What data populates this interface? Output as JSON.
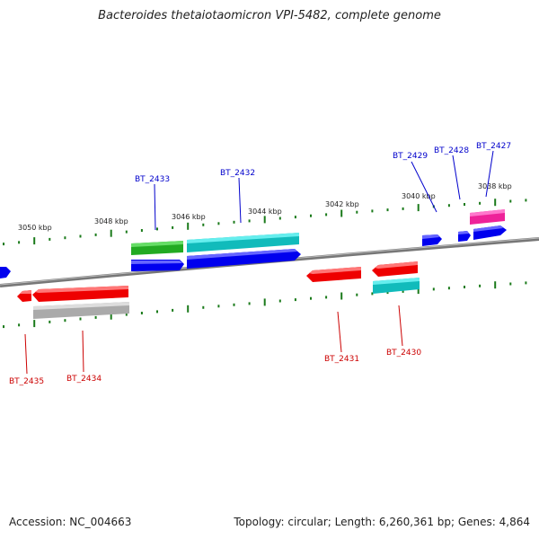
{
  "title": "Bacteroides thetaiotaomicron VPI-5482, complete genome",
  "footer": {
    "accession": "Accession: NC_004663",
    "summary": "Topology: circular; Length: 6,260,361 bp; Genes: 4,864"
  },
  "scale_labels": [
    "3050 kbp",
    "3048 kbp",
    "3046 kbp",
    "3044 kbp",
    "3042 kbp",
    "3040 kbp",
    "3038 kbp"
  ],
  "genes": {
    "upper": [
      {
        "label": "BT_2433",
        "color": "#0000cc"
      },
      {
        "label": "BT_2432",
        "color": "#0000cc"
      },
      {
        "label": "BT_2429",
        "color": "#0000cc"
      },
      {
        "label": "BT_2428",
        "color": "#0000cc"
      },
      {
        "label": "BT_2427",
        "color": "#0000cc"
      }
    ],
    "lower": [
      {
        "label": "BT_2435",
        "color": "#cc0000"
      },
      {
        "label": "BT_2434",
        "color": "#cc0000"
      },
      {
        "label": "BT_2431",
        "color": "#cc0000"
      },
      {
        "label": "BT_2430",
        "color": "#cc0000"
      }
    ]
  },
  "colors": {
    "forward": "#0000ff",
    "reverse": "#ff0000",
    "green": "#22aa22",
    "cyan": "#11bbbb",
    "magenta": "#ee2299",
    "gray": "#aaaaaa",
    "tick": "#1a7a1a",
    "backbone": "#777777"
  }
}
